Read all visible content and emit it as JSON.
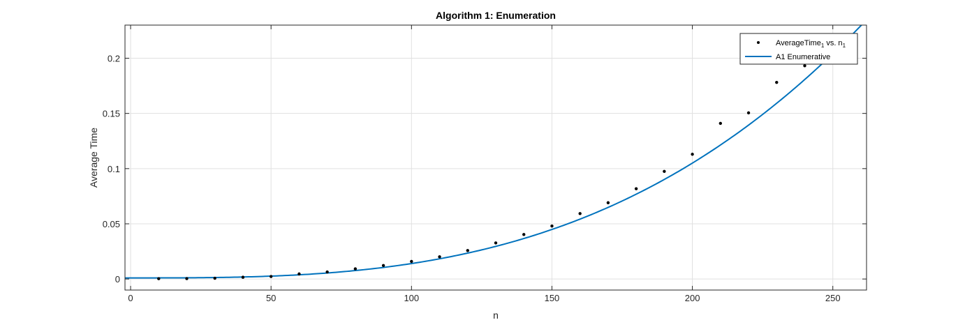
{
  "chart_data": {
    "type": "scatter",
    "title": "Algorithm 1: Enumeration",
    "xlabel": "n",
    "ylabel": "Average Time",
    "xlim": [
      -2,
      262
    ],
    "ylim": [
      -0.01,
      0.23
    ],
    "xticks": [
      0,
      50,
      100,
      150,
      200,
      250
    ],
    "yticks": [
      0,
      0.05,
      0.1,
      0.15,
      0.2
    ],
    "xtick_labels": [
      "0",
      "50",
      "100",
      "150",
      "200",
      "250"
    ],
    "ytick_labels": [
      "0",
      "0.05",
      "0.1",
      "0.15",
      "0.2"
    ],
    "grid": true,
    "legend_position": "top-right",
    "series": [
      {
        "name": "AverageTime1 vs. n1",
        "legend_main": "AverageTime",
        "legend_sub1": "1",
        "legend_mid": " vs. n",
        "legend_sub2": "1",
        "style": "points",
        "color": "#000000",
        "x": [
          10,
          20,
          30,
          40,
          50,
          60,
          70,
          80,
          90,
          100,
          110,
          120,
          130,
          140,
          150,
          160,
          170,
          180,
          190,
          200,
          210,
          220,
          230,
          240
        ],
        "y": [
          0.0003,
          0.0004,
          0.0007,
          0.0016,
          0.0023,
          0.0046,
          0.0064,
          0.0092,
          0.0122,
          0.0159,
          0.0201,
          0.0258,
          0.0327,
          0.0403,
          0.048,
          0.0593,
          0.0691,
          0.0818,
          0.0975,
          0.113,
          0.141,
          0.1505,
          0.1781,
          0.1932
        ]
      },
      {
        "name": "A1 Enumerative",
        "legend_main": "A1 Enumerative",
        "style": "line",
        "color": "#0072BD",
        "fit": "y = 0.001 + 1.3e-8 * x^3"
      }
    ]
  }
}
